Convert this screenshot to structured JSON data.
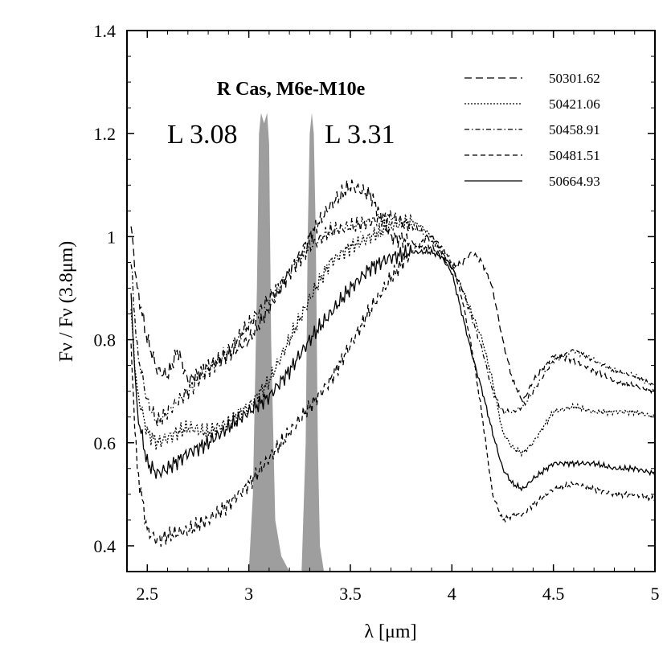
{
  "chart_data": {
    "type": "line",
    "title": "R Cas, M6e-M10e",
    "xlabel": "λ [μm]",
    "ylabel": "Fν / Fν (3.8μm)",
    "xlim": [
      2.4,
      5.0
    ],
    "ylim": [
      0.35,
      1.4
    ],
    "xticks": [
      2.5,
      3,
      3.5,
      4,
      4.5,
      5
    ],
    "xtick_labels": [
      "2.5",
      "3",
      "3.5",
      "4",
      "4.5",
      "5"
    ],
    "yticks": [
      0.4,
      0.6,
      0.8,
      1.0,
      1.2,
      1.4
    ],
    "ytick_labels": [
      "0.4",
      "0.6",
      "0.8",
      "1",
      "1.2",
      "1.4"
    ],
    "grid": false,
    "legend_position": "top-right",
    "filters": [
      {
        "label": "L 3.08",
        "points": [
          [
            3.0,
            0.35
          ],
          [
            3.02,
            0.5
          ],
          [
            3.04,
            0.9
          ],
          [
            3.05,
            1.2
          ],
          [
            3.06,
            1.24
          ],
          [
            3.075,
            1.22
          ],
          [
            3.09,
            1.24
          ],
          [
            3.1,
            1.18
          ],
          [
            3.11,
            0.8
          ],
          [
            3.13,
            0.45
          ],
          [
            3.16,
            0.38
          ],
          [
            3.2,
            0.35
          ]
        ]
      },
      {
        "label": "L 3.31",
        "points": [
          [
            3.26,
            0.35
          ],
          [
            3.28,
            0.6
          ],
          [
            3.29,
            1.0
          ],
          [
            3.3,
            1.2
          ],
          [
            3.31,
            1.24
          ],
          [
            3.32,
            1.2
          ],
          [
            3.33,
            1.0
          ],
          [
            3.34,
            0.6
          ],
          [
            3.35,
            0.4
          ],
          [
            3.37,
            0.35
          ]
        ]
      }
    ],
    "series": [
      {
        "name": "50301.62",
        "dash": "9,5",
        "x": [
          2.42,
          2.45,
          2.5,
          2.55,
          2.6,
          2.65,
          2.7,
          2.8,
          2.9,
          3.0,
          3.1,
          3.2,
          3.3,
          3.4,
          3.5,
          3.6,
          3.7,
          3.8,
          3.85,
          3.9,
          3.95,
          4.0,
          4.05,
          4.1,
          4.15,
          4.2,
          4.25,
          4.3,
          4.35,
          4.4,
          4.5,
          4.6,
          4.7,
          4.8,
          4.9,
          5.0
        ],
        "y": [
          1.02,
          0.9,
          0.8,
          0.74,
          0.73,
          0.78,
          0.72,
          0.75,
          0.77,
          0.8,
          0.86,
          0.93,
          1.0,
          1.06,
          1.1,
          1.08,
          1.0,
          0.99,
          0.98,
          0.98,
          0.96,
          0.94,
          0.95,
          0.97,
          0.95,
          0.9,
          0.8,
          0.72,
          0.68,
          0.72,
          0.77,
          0.76,
          0.74,
          0.72,
          0.71,
          0.7
        ]
      },
      {
        "name": "50421.06",
        "dash": "2,2",
        "x": [
          2.42,
          2.45,
          2.5,
          2.55,
          2.6,
          2.7,
          2.8,
          2.9,
          3.0,
          3.1,
          3.2,
          3.3,
          3.4,
          3.5,
          3.6,
          3.7,
          3.8,
          3.85,
          3.9,
          3.95,
          4.0,
          4.05,
          4.1,
          4.15,
          4.2,
          4.25,
          4.3,
          4.35,
          4.4,
          4.5,
          4.6,
          4.7,
          4.8,
          4.9,
          5.0
        ],
        "y": [
          0.85,
          0.7,
          0.62,
          0.6,
          0.61,
          0.63,
          0.62,
          0.64,
          0.67,
          0.72,
          0.8,
          0.88,
          0.95,
          0.98,
          1.0,
          1.02,
          1.03,
          1.02,
          1.0,
          0.97,
          0.94,
          0.9,
          0.85,
          0.8,
          0.72,
          0.62,
          0.59,
          0.58,
          0.6,
          0.66,
          0.67,
          0.66,
          0.66,
          0.66,
          0.65
        ]
      },
      {
        "name": "50458.91",
        "dash": "6,3,1.5,3",
        "x": [
          2.42,
          2.45,
          2.5,
          2.55,
          2.6,
          2.7,
          2.8,
          2.9,
          3.0,
          3.1,
          3.2,
          3.3,
          3.4,
          3.5,
          3.6,
          3.7,
          3.8,
          3.85,
          3.9,
          3.95,
          4.0,
          4.05,
          4.1,
          4.15,
          4.2,
          4.25,
          4.3,
          4.35,
          4.4,
          4.5,
          4.6,
          4.7,
          4.8,
          4.9,
          5.0
        ],
        "y": [
          0.95,
          0.78,
          0.68,
          0.64,
          0.66,
          0.7,
          0.74,
          0.78,
          0.83,
          0.88,
          0.93,
          0.98,
          1.01,
          1.02,
          1.03,
          1.04,
          1.02,
          1.01,
          0.99,
          0.97,
          0.94,
          0.9,
          0.84,
          0.78,
          0.7,
          0.66,
          0.66,
          0.67,
          0.7,
          0.76,
          0.78,
          0.76,
          0.74,
          0.73,
          0.71
        ]
      },
      {
        "name": "50481.51",
        "dash": "6,4",
        "x": [
          2.42,
          2.45,
          2.5,
          2.55,
          2.6,
          2.7,
          2.8,
          2.9,
          3.0,
          3.1,
          3.2,
          3.3,
          3.4,
          3.5,
          3.6,
          3.7,
          3.8,
          3.85,
          3.9,
          3.95,
          4.0,
          4.05,
          4.1,
          4.15,
          4.2,
          4.25,
          4.3,
          4.35,
          4.4,
          4.5,
          4.6,
          4.7,
          4.8,
          4.9,
          5.0
        ],
        "y": [
          0.78,
          0.55,
          0.43,
          0.41,
          0.42,
          0.43,
          0.45,
          0.48,
          0.52,
          0.57,
          0.62,
          0.67,
          0.72,
          0.79,
          0.86,
          0.92,
          0.97,
          0.99,
          1.0,
          0.98,
          0.95,
          0.88,
          0.78,
          0.65,
          0.5,
          0.45,
          0.46,
          0.46,
          0.48,
          0.51,
          0.52,
          0.51,
          0.5,
          0.5,
          0.49
        ]
      },
      {
        "name": "50664.93",
        "dash": "",
        "x": [
          2.42,
          2.45,
          2.5,
          2.55,
          2.6,
          2.7,
          2.8,
          2.9,
          3.0,
          3.1,
          3.2,
          3.3,
          3.4,
          3.5,
          3.6,
          3.7,
          3.8,
          3.85,
          3.9,
          3.95,
          4.0,
          4.05,
          4.1,
          4.15,
          4.2,
          4.25,
          4.3,
          4.35,
          4.4,
          4.5,
          4.6,
          4.7,
          4.8,
          4.9,
          5.0
        ],
        "y": [
          0.88,
          0.66,
          0.56,
          0.54,
          0.55,
          0.58,
          0.6,
          0.63,
          0.66,
          0.69,
          0.74,
          0.8,
          0.85,
          0.9,
          0.94,
          0.96,
          0.97,
          0.97,
          0.97,
          0.96,
          0.93,
          0.85,
          0.77,
          0.7,
          0.62,
          0.55,
          0.52,
          0.51,
          0.53,
          0.56,
          0.56,
          0.56,
          0.55,
          0.55,
          0.54
        ]
      }
    ]
  }
}
